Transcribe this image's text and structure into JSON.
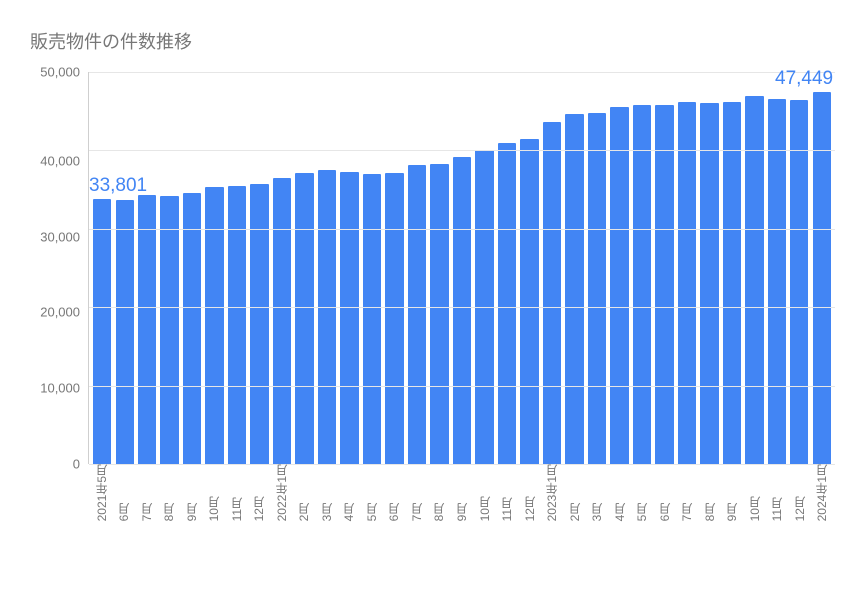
{
  "chart": {
    "type": "bar",
    "title": "販売物件の件数推移",
    "title_fontsize": 18,
    "title_color": "#777777",
    "background_color": "#ffffff",
    "grid_color": "#e6e6e6",
    "axis_line_color": "#cfcfcf",
    "tick_label_color": "#777777",
    "tick_label_fontsize": 13,
    "x_label_fontsize": 12,
    "bar_color": "#4285f4",
    "bar_width_ratio": 0.82,
    "ylim": [
      0,
      50000
    ],
    "ytick_step": 10000,
    "yticks": [
      "50,000",
      "40,000",
      "30,000",
      "20,000",
      "10,000",
      "0"
    ],
    "categories": [
      "2021年5月",
      "6月",
      "7月",
      "8月",
      "9月",
      "10月",
      "11月",
      "12月",
      "2022年1月",
      "2月",
      "3月",
      "4月",
      "5月",
      "6月",
      "7月",
      "8月",
      "9月",
      "10月",
      "11月",
      "12月",
      "2023年1月",
      "2月",
      "3月",
      "4月",
      "5月",
      "6月",
      "7月",
      "8月",
      "9月",
      "10月",
      "11月",
      "12月",
      "2024年1月"
    ],
    "values": [
      33801,
      33700,
      34300,
      34200,
      34600,
      35300,
      35400,
      35700,
      36500,
      37100,
      37500,
      37300,
      37000,
      37100,
      38100,
      38300,
      39200,
      40100,
      41000,
      41400,
      43600,
      44700,
      44800,
      45500,
      45800,
      45800,
      46200,
      46000,
      46200,
      46900,
      46500,
      46400,
      47449
    ],
    "callouts": [
      {
        "text": "33,801",
        "color": "#4285f4",
        "index": 0,
        "fontsize": 19
      },
      {
        "text": "47,449",
        "color": "#4285f4",
        "index": 32,
        "fontsize": 19
      }
    ]
  }
}
